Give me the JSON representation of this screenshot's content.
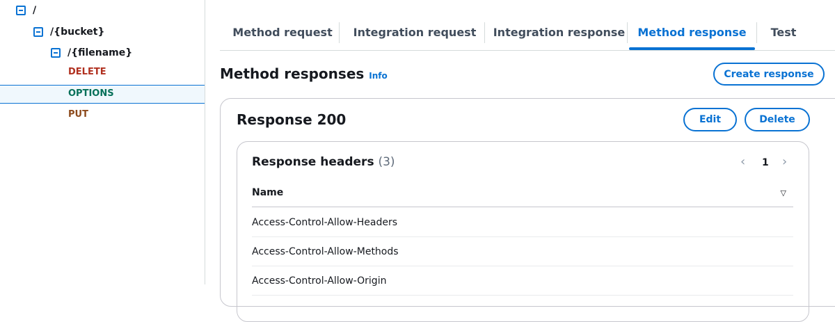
{
  "tree": {
    "root": "/",
    "bucket": "/{bucket}",
    "filename": "/{filename}",
    "methods": [
      {
        "label": "DELETE",
        "color": "#b0301f"
      },
      {
        "label": "OPTIONS",
        "color": "#067059"
      },
      {
        "label": "PUT",
        "color": "#8c4a1c"
      }
    ],
    "selected": "OPTIONS"
  },
  "tabs": [
    {
      "label": "Method request"
    },
    {
      "label": "Integration request"
    },
    {
      "label": "Integration response"
    },
    {
      "label": "Method response",
      "active": true
    },
    {
      "label": "Test"
    }
  ],
  "section": {
    "title": "Method responses",
    "info": "Info",
    "create_button": "Create response"
  },
  "response": {
    "title": "Response 200",
    "edit_button": "Edit",
    "delete_button": "Delete",
    "headers": {
      "title": "Response headers",
      "count": "(3)",
      "page": "1",
      "column": "Name",
      "rows": [
        "Access-Control-Allow-Headers",
        "Access-Control-Allow-Methods",
        "Access-Control-Allow-Origin"
      ]
    }
  },
  "colors": {
    "accent": "#0972d3"
  }
}
